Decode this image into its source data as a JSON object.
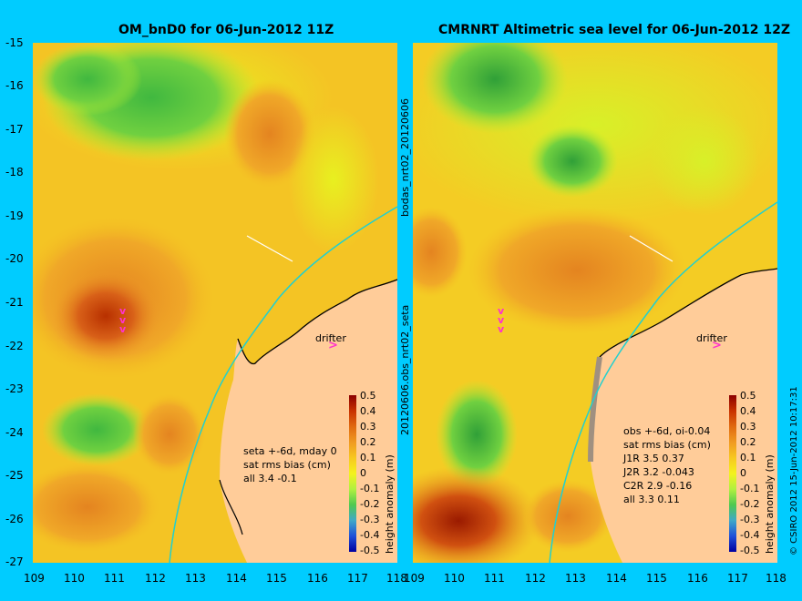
{
  "left_panel": {
    "title": "OM_bnD0 for 06-Jun-2012 11Z",
    "stats": [
      "seta +-6d, mday 0",
      "sat rms bias (cm)",
      "all 3.4 -0.1"
    ],
    "drifter_label": "drifter"
  },
  "right_panel": {
    "title": "CMRNRT Altimetric sea level  for 06-Jun-2012 12Z",
    "stats": [
      "obs +-6d, oi-0.04",
      "sat rms bias (cm)",
      "J1R   3.5 0.37",
      "J2R   3.2 -0.043",
      "C2R   2.9 -0.16",
      "all 3.3 0.11"
    ],
    "drifter_label": "drifter"
  },
  "middle_labels": {
    "top": "bodas_nrt02_20120606",
    "bottom": "20120606.obs_nrt02_seta"
  },
  "credit": "© CSIRO 2012  15-Jun-2012 10:17:31",
  "colorbar": {
    "title": "height anomaly (m)",
    "ticks": [
      "0.5",
      "0.4",
      "0.3",
      "0.2",
      "0.1",
      "0",
      "-0.1",
      "-0.2",
      "-0.3",
      "-0.4",
      "-0.5"
    ],
    "colors": [
      "#8b0000",
      "#c83200",
      "#e06a10",
      "#f09a20",
      "#f7c820",
      "#f4f21e",
      "#b0f040",
      "#50c850",
      "#40a8c8",
      "#2050d8",
      "#0000a0"
    ]
  },
  "axes": {
    "lat_ticks": [
      "-15",
      "-16",
      "-17",
      "-18",
      "-19",
      "-20",
      "-21",
      "-22",
      "-23",
      "-24",
      "-25",
      "-26",
      "-27"
    ],
    "left_lon_ticks": [
      "109",
      "110",
      "111",
      "112",
      "113",
      "114",
      "115",
      "116",
      "117",
      "118"
    ],
    "right_lon_ticks": [
      "109",
      "110",
      "111",
      "112",
      "113",
      "114",
      "115",
      "116",
      "117",
      "118"
    ]
  }
}
